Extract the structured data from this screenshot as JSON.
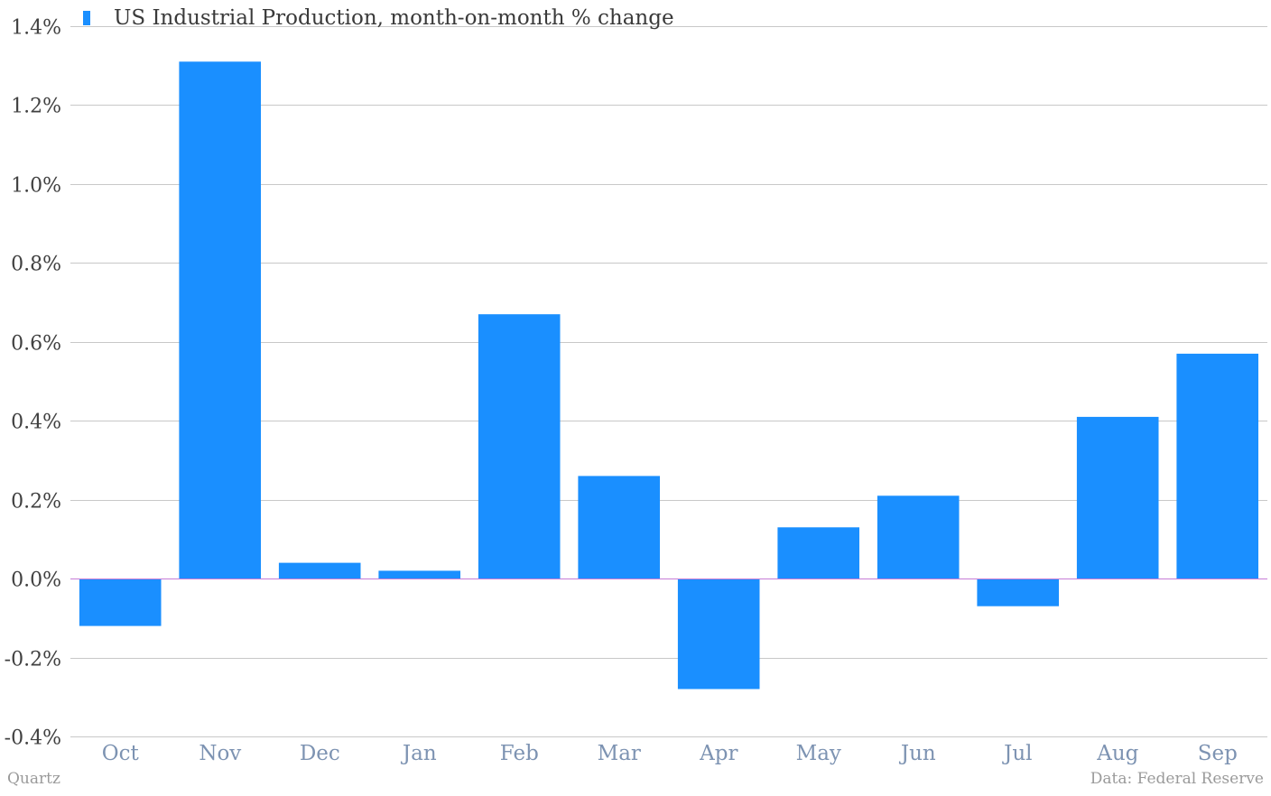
{
  "chart_data": {
    "type": "bar",
    "title": "",
    "xlabel": "",
    "ylabel": "",
    "ylim": [
      -0.4,
      1.4
    ],
    "yticks": [
      "1.4%",
      "1.2%",
      "1.0%",
      "0.8%",
      "0.6%",
      "0.4%",
      "0.2%",
      "0.0%",
      "-0.2%",
      "-0.4%"
    ],
    "ytick_values": [
      1.4,
      1.2,
      1.0,
      0.8,
      0.6,
      0.4,
      0.2,
      0.0,
      -0.2,
      -0.4
    ],
    "categories": [
      "Oct",
      "Nov",
      "Dec",
      "Jan",
      "Feb",
      "Mar",
      "Apr",
      "May",
      "Jun",
      "Jul",
      "Aug",
      "Sep"
    ],
    "series": [
      {
        "name": "US Industrial Production, month-on-month % change",
        "color": "#1a8fff",
        "values": [
          -0.12,
          1.31,
          0.04,
          0.02,
          0.67,
          0.26,
          -0.28,
          0.13,
          0.21,
          -0.07,
          0.41,
          0.57
        ]
      }
    ],
    "grid": true,
    "legend_position": "top-left",
    "zero_line_color": "#c77dd6",
    "grid_color": "#c8c8c8"
  },
  "footer": {
    "source_left": "Quartz",
    "source_right": "Data: Federal Reserve"
  }
}
